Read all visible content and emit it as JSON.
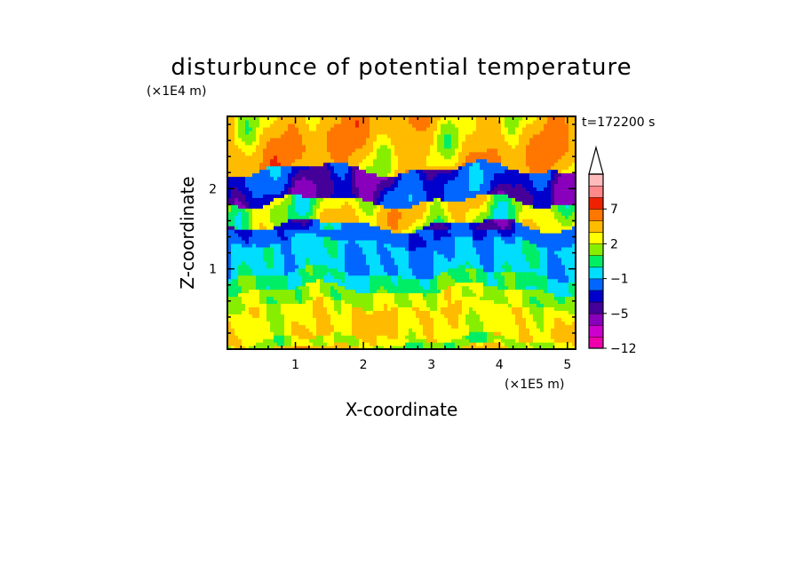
{
  "chart_data": {
    "type": "heatmap",
    "title": "disturbunce of potential temperature",
    "xlabel": "X-coordinate",
    "ylabel": "Z-coordinate",
    "x_unit": "(×1E5 m)",
    "y_unit": "(×1E4 m)",
    "time_label": "t=172200 s",
    "xlim": [
      0,
      5.12
    ],
    "ylim": [
      0,
      2.9
    ],
    "x_ticks": [
      1,
      2,
      3,
      4,
      5
    ],
    "y_ticks": [
      1,
      2
    ],
    "colorbar": {
      "levels": [
        -12,
        -10,
        -8,
        -5,
        -4,
        -3,
        -1,
        0,
        1,
        2,
        3,
        5,
        7,
        9,
        11
      ],
      "tick_labels": [
        "-12",
        "-5",
        "-1",
        "2",
        "7"
      ],
      "tick_values": [
        -12,
        -5,
        -1,
        2,
        7
      ],
      "colors": [
        "#ee00aa",
        "#cc00cc",
        "#8800bb",
        "#440099",
        "#0000cc",
        "#0066ff",
        "#00ddff",
        "#00ee66",
        "#88ee00",
        "#ffff00",
        "#ffbb00",
        "#ff7700",
        "#ee2200",
        "#ff8888",
        "#ffbbbb"
      ],
      "extend": "max"
    },
    "bands": [
      {
        "z_range": [
          0.0,
          0.12
        ],
        "value": 1.5,
        "description": "yellow/green near surface"
      },
      {
        "z_range": [
          0.12,
          0.55
        ],
        "value": 2.8,
        "description": "orange/yellow lower layer"
      },
      {
        "z_range": [
          0.55,
          0.75
        ],
        "value": 1.8,
        "description": "yellow layer"
      },
      {
        "z_range": [
          0.75,
          0.95
        ],
        "value": 0.3,
        "description": "green layer"
      },
      {
        "z_range": [
          0.95,
          1.35
        ],
        "value": -0.8,
        "description": "cyan layer"
      },
      {
        "z_range": [
          1.35,
          1.55
        ],
        "value": -2.5,
        "description": "blue/cyan mixed"
      },
      {
        "z_range": [
          1.55,
          1.85
        ],
        "value": 2.5,
        "description": "yellow/orange layer"
      },
      {
        "z_range": [
          1.85,
          2.25
        ],
        "value": -3.5,
        "description": "blue wavy layer"
      },
      {
        "z_range": [
          2.25,
          2.9
        ],
        "value": 4.0,
        "description": "orange/red upper layer"
      }
    ]
  }
}
